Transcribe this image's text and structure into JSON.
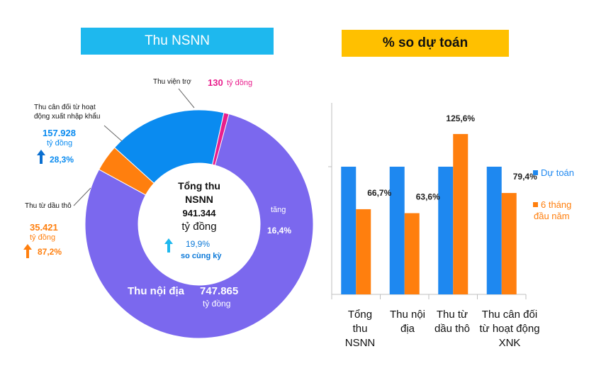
{
  "left_title": "Thu NSNN",
  "right_title": "% so dự toán",
  "donut": {
    "center": {
      "line1": "Tổng thu",
      "line2": "NSNN",
      "value": "941.344",
      "unit": "tỷ đồng",
      "growth": "19,9%",
      "growth_label": "so cùng kỳ"
    },
    "segments": [
      {
        "name": "Thu nội địa",
        "value": 747865,
        "color": "#7B68EE"
      },
      {
        "name": "Thu từ dầu thô",
        "value": 35421,
        "color": "#FF7F0E"
      },
      {
        "name": "Thu cân đối từ hoạt động xuất nhập khẩu",
        "value": 157928,
        "color": "#0A8BF0"
      },
      {
        "name": "Thu viện trợ",
        "value": 130,
        "color": "#E91E8C"
      }
    ],
    "labels": {
      "noi_dia_name": "Thu nội địa",
      "noi_dia_value": "747.865",
      "noi_dia_unit": "tỷ đồng",
      "noi_dia_tang": "tăng",
      "noi_dia_pct": "16,4%",
      "vien_tro_name": "Thu viện trợ",
      "vien_tro_value": "130",
      "vien_tro_unit": "tỷ đồng",
      "xnk_name_1": "Thu cân đối từ hoạt",
      "xnk_name_2": "động xuất nhập khẩu",
      "xnk_value": "157.928",
      "xnk_unit": "tỷ đồng",
      "xnk_pct": "28,3%",
      "dau_tho_name": "Thu từ dầu thô",
      "dau_tho_value": "35.421",
      "dau_tho_unit": "tỷ đồng",
      "dau_tho_pct": "87,2%"
    }
  },
  "chart_data": [
    {
      "type": "pie",
      "title": "Thu NSNN",
      "categories": [
        "Thu nội địa",
        "Thu từ dầu thô",
        "Thu cân đối từ hoạt động xuất nhập khẩu",
        "Thu viện trợ"
      ],
      "values": [
        747865,
        35421,
        157928,
        130
      ],
      "unit": "tỷ đồng",
      "total": 941344
    },
    {
      "type": "bar",
      "title": "% so dự toán",
      "categories": [
        "Tổng thu NSNN",
        "Thu nội địa",
        "Thu từ dầu thô",
        "Thu cân đối từ hoạt động XNK"
      ],
      "category_lines": [
        [
          "Tổng",
          "thu",
          "NSNN"
        ],
        [
          "Thu nội",
          "địa"
        ],
        [
          "Thu từ",
          "dầu thô"
        ],
        [
          "Thu cân đối",
          "từ hoạt động",
          "XNK"
        ]
      ],
      "series": [
        {
          "name": "Dự toán",
          "values": [
            100,
            100,
            100,
            100
          ],
          "color": "#1E88F0"
        },
        {
          "name": "6 tháng đầu năm",
          "values": [
            66.7,
            63.6,
            125.6,
            79.4
          ],
          "color": "#FF7F0E",
          "labels": [
            "66,7%",
            "63,6%",
            "125,6%",
            "79,4%"
          ]
        }
      ],
      "ylim": [
        0,
        150
      ],
      "legend": [
        {
          "text": "Dự toán",
          "color": "#1E88F0"
        },
        {
          "text_1": "6 tháng",
          "text_2": "đầu năm",
          "color": "#FF7F0E"
        }
      ]
    }
  ]
}
